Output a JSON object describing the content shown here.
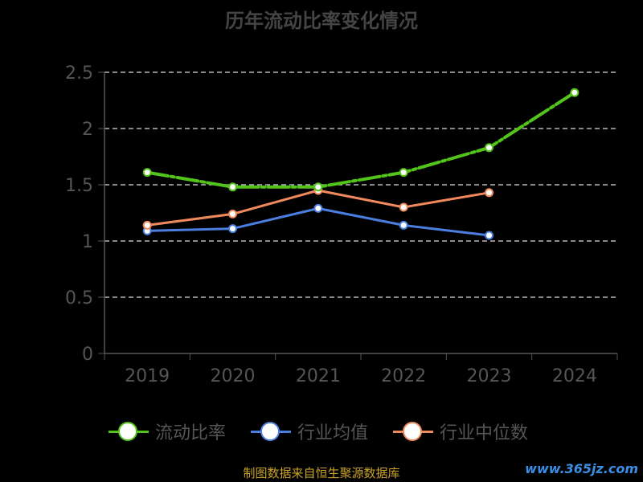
{
  "chart_data": {
    "type": "line",
    "title": "历年流动比率变化情况",
    "categories": [
      "2019",
      "2020",
      "2021",
      "2022",
      "2023",
      "2024"
    ],
    "ylim": [
      0,
      2.5
    ],
    "yticks": [
      "0",
      "0.5",
      "1",
      "1.5",
      "2",
      "2.5"
    ],
    "grid": true,
    "legend_position": "bottom",
    "series": [
      {
        "name": "流动比率",
        "color": "#52c41a",
        "values": [
          1.61,
          1.48,
          1.48,
          1.61,
          1.83,
          2.32
        ]
      },
      {
        "name": "行业均值",
        "color": "#4a7fe0",
        "values": [
          1.09,
          1.11,
          1.29,
          1.14,
          1.05,
          null
        ]
      },
      {
        "name": "行业中位数",
        "color": "#f08a5d",
        "values": [
          1.14,
          1.24,
          1.45,
          1.3,
          1.43,
          null
        ]
      }
    ]
  },
  "footer": {
    "source": "制图数据来自恒生聚源数据库",
    "watermark": "www.365jz.com"
  }
}
